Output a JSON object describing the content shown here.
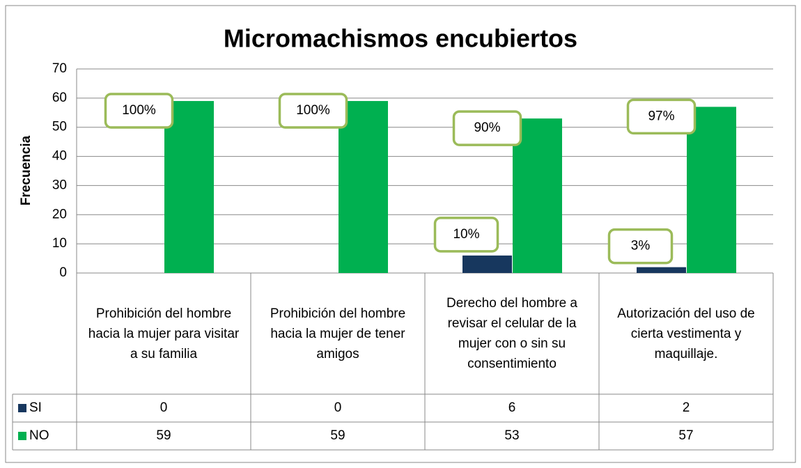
{
  "chart_data": {
    "type": "bar",
    "title": "Micromachismos encubiertos",
    "y_label": "Frecuencia",
    "categories": [
      "Prohibición del hombre hacia la mujer para visitar a su familia",
      "Prohibición del hombre hacia la mujer de tener amigos",
      "Derecho del hombre a revisar el celular de la mujer con o sin su consentimiento",
      "Autorización del uso de cierta vestimenta y maquillaje."
    ],
    "series": [
      {
        "name": "SI",
        "color": "#17375e",
        "values": [
          0,
          0,
          6,
          2
        ],
        "callouts": [
          null,
          null,
          "10%",
          "3%"
        ]
      },
      {
        "name": "NO",
        "color": "#00b050",
        "values": [
          59,
          59,
          53,
          57
        ],
        "callouts": [
          "100%",
          "100%",
          "90%",
          "97%"
        ]
      }
    ],
    "ylim": [
      0,
      70
    ],
    "yticks": [
      0,
      10,
      20,
      30,
      40,
      50,
      60,
      70
    ],
    "grid": true,
    "data_table": true
  }
}
